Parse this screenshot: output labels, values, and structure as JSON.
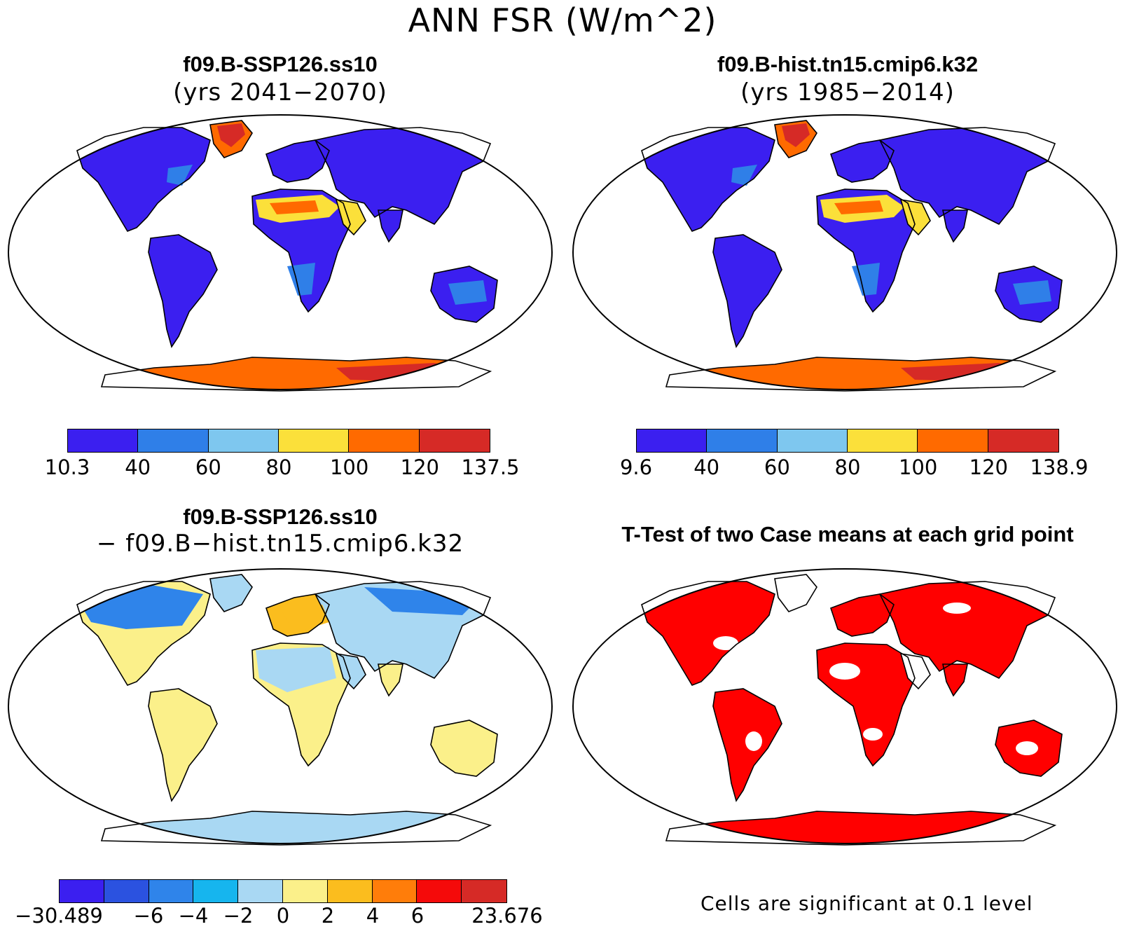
{
  "title": "ANN FSR (W/m^2)",
  "panels": {
    "top_left": {
      "title": "f09.B-SSP126.ss10",
      "subtitle": "(yrs 2041−2070)",
      "colorbar": {
        "colors": [
          "#3b1ff0",
          "#2f7fe8",
          "#7ec7ef",
          "#fbe03a",
          "#ff6a00",
          "#d62a26"
        ],
        "ticks": [
          "10.3",
          "40",
          "60",
          "80",
          "100",
          "120",
          "137.5"
        ]
      }
    },
    "top_right": {
      "title": "f09.B-hist.tn15.cmip6.k32",
      "subtitle": "(yrs 1985−2014)",
      "colorbar": {
        "colors": [
          "#3b1ff0",
          "#2f7fe8",
          "#7ec7ef",
          "#fbe03a",
          "#ff6a00",
          "#d62a26"
        ],
        "ticks": [
          "9.6",
          "40",
          "60",
          "80",
          "100",
          "120",
          "138.9"
        ]
      }
    },
    "bottom_left": {
      "title": "f09.B-SSP126.ss10",
      "subtitle": "− f09.B−hist.tn15.cmip6.k32",
      "colorbar": {
        "colors": [
          "#3b1ff0",
          "#2b52e0",
          "#2f84ea",
          "#16b5ee",
          "#a9d8f3",
          "#fbf08a",
          "#fbbd1e",
          "#ff7d0a",
          "#f50a0a",
          "#d62a26"
        ],
        "ticks": [
          "−30.489",
          "",
          "−6",
          "−4",
          "−2",
          "0",
          "2",
          "4",
          "6",
          "",
          "23.676"
        ]
      }
    },
    "bottom_right": {
      "title": "T-Test of two Case means at each grid point",
      "note": "Cells are significant at 0.1 level",
      "significant_color": "#ff0000"
    }
  },
  "map_colors": {
    "land_low": "#3b1ff0",
    "land_mid": "#2f7fe8",
    "desert": "#fbe03a",
    "desert_hot": "#ff6a00",
    "ice": "#ff6a00",
    "ice_core": "#d62a26",
    "diff_pos": "#fbf08a",
    "diff_neg": "#a9d8f3",
    "diff_strongneg": "#2f84ea",
    "diff_pos2": "#fbbd1e",
    "sig": "#ff0000"
  }
}
